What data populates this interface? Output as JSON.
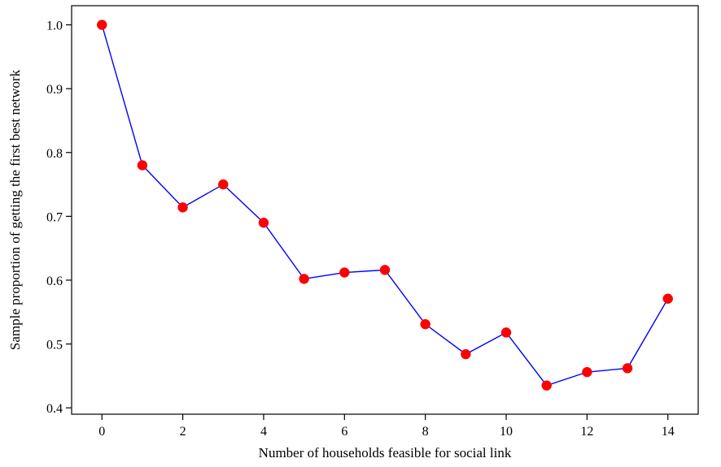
{
  "colors": {
    "line": "#0000ff",
    "marker": "#ff0000",
    "axis": "#000000",
    "background": "#ffffff"
  },
  "chart_data": {
    "type": "line",
    "title": "",
    "xlabel": "Number of households feasible for social link",
    "ylabel": "Sample proportion of getting the first best network",
    "xlim": [
      -0.75,
      14.75
    ],
    "ylim": [
      0.39,
      1.03
    ],
    "x_ticks": [
      0,
      2,
      4,
      6,
      8,
      10,
      12,
      14
    ],
    "x_tick_labels": [
      "0",
      "2",
      "4",
      "6",
      "8",
      "10",
      "12",
      "14"
    ],
    "y_ticks": [
      0.4,
      0.5,
      0.6,
      0.7,
      0.8,
      0.9,
      1.0
    ],
    "y_tick_labels": [
      "0.4",
      "0.5",
      "0.6",
      "0.7",
      "0.8",
      "0.9",
      "1.0"
    ],
    "grid": false,
    "series": [
      {
        "x": [
          0,
          1,
          2,
          3,
          4,
          5,
          6,
          7,
          8,
          9,
          10,
          11,
          12,
          13,
          14
        ],
        "y": [
          1.0,
          0.78,
          0.714,
          0.75,
          0.69,
          0.602,
          0.612,
          0.616,
          0.531,
          0.484,
          0.518,
          0.435,
          0.456,
          0.462,
          0.571
        ]
      }
    ]
  }
}
